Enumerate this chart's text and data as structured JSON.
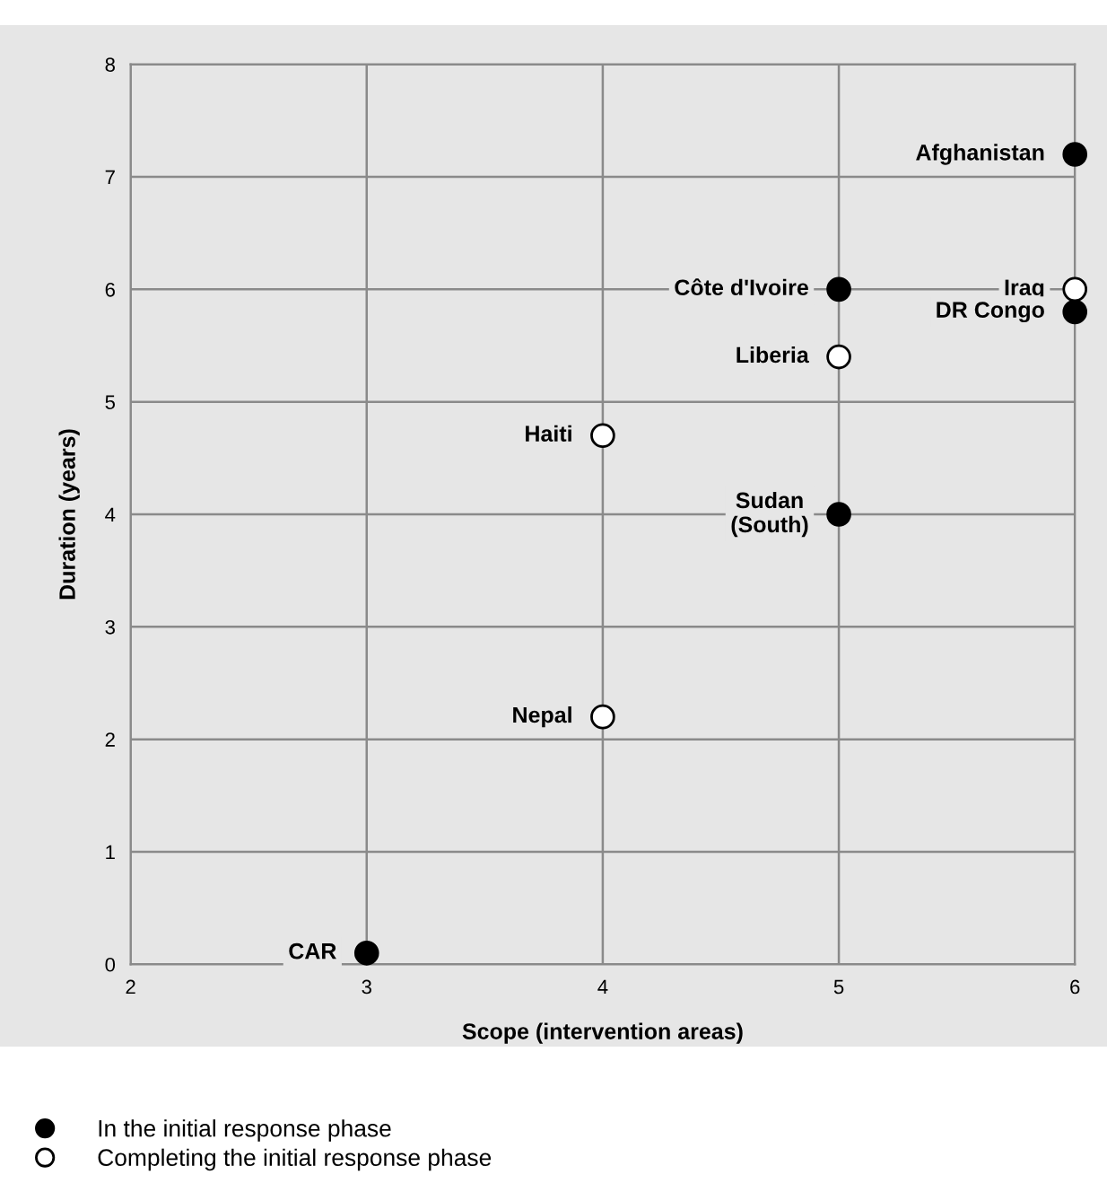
{
  "chart_data": {
    "type": "scatter",
    "xlabel": "Scope (intervention areas)",
    "ylabel": "Duration (years)",
    "xlim": [
      2,
      6
    ],
    "ylim": [
      0,
      8
    ],
    "xticks": [
      2,
      3,
      4,
      5,
      6
    ],
    "yticks": [
      0,
      1,
      2,
      3,
      4,
      5,
      6,
      7,
      8
    ],
    "grid": true,
    "marker": "circle",
    "legend": "bottom left",
    "series": [
      {
        "name": "In the initial response phase",
        "color": "#000000",
        "x": [
          6,
          5,
          6,
          5,
          3
        ],
        "values": [
          7.2,
          6.0,
          5.8,
          4.0,
          0.1
        ]
      },
      {
        "name": "Completing the initial response phase",
        "color": "#ffffff",
        "x": [
          6,
          5,
          4,
          4
        ],
        "values": [
          6.0,
          5.4,
          4.7,
          2.2
        ]
      }
    ],
    "annotations": [
      {
        "text": "Afghanistan",
        "x": 6,
        "y": 7.2
      },
      {
        "text": "Côte d'Ivoire",
        "x": 5,
        "y": 6.0
      },
      {
        "text": "Iraq",
        "x": 6,
        "y": 6.0
      },
      {
        "text": "DR Congo",
        "x": 6,
        "y": 5.8
      },
      {
        "text": "Liberia",
        "x": 5,
        "y": 5.4
      },
      {
        "text": "Haiti",
        "x": 4,
        "y": 4.7
      },
      {
        "text": "Sudan\n(South)",
        "x": 5,
        "y": 4.0
      },
      {
        "text": "Nepal",
        "x": 4,
        "y": 2.2
      },
      {
        "text": "CAR",
        "x": 3,
        "y": 0.1
      }
    ]
  }
}
